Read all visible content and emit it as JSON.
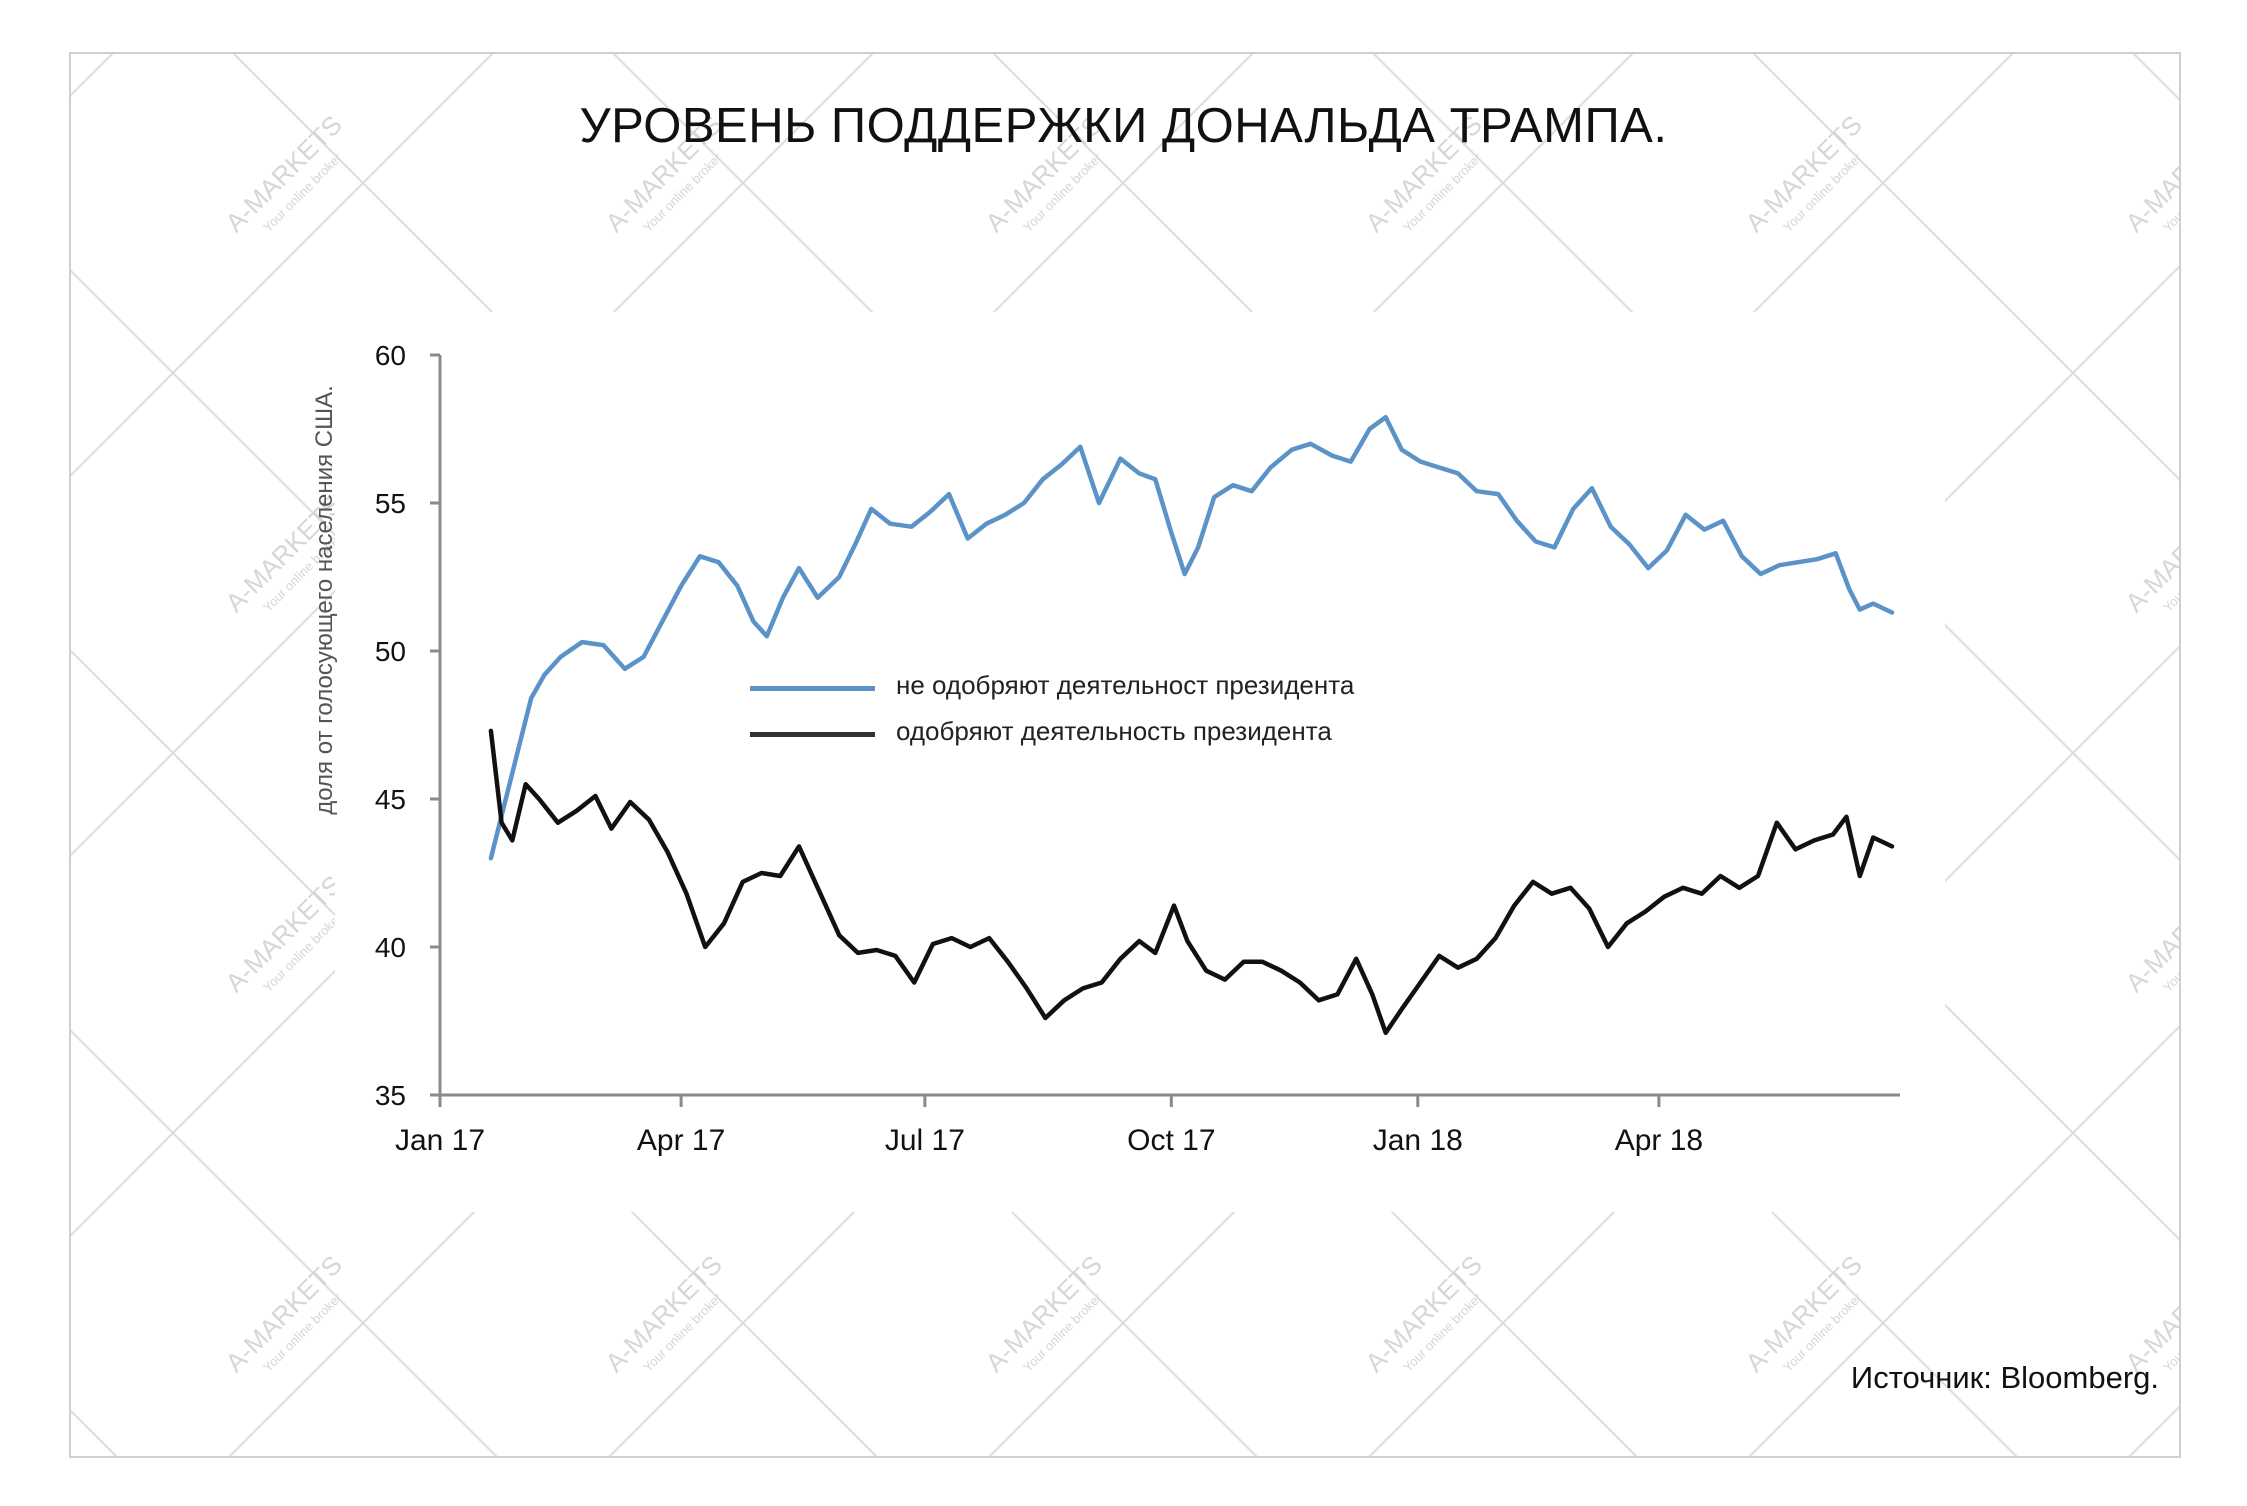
{
  "title": "УРОВЕНЬ ПОДДЕРЖКИ ДОНАЛЬДА ТРАМПА.",
  "source": "Источник: Bloomberg.",
  "watermark": {
    "brand": "A-MARKETS",
    "tagline": "Your online broker"
  },
  "chart_data": {
    "type": "line",
    "ylabel": "доля от голосующего населения США.",
    "xlabel": "",
    "ylim": [
      35,
      60
    ],
    "xlim": [
      "2017-01-01",
      "2018-06-30"
    ],
    "y_ticks": [
      35,
      40,
      45,
      50,
      55,
      60
    ],
    "x_ticks": [
      {
        "label": "Jan 17",
        "date": "2017-01-01"
      },
      {
        "label": "Apr 17",
        "date": "2017-04-01"
      },
      {
        "label": "Jul 17",
        "date": "2017-07-01"
      },
      {
        "label": "Oct 17",
        "date": "2017-10-01"
      },
      {
        "label": "Jan 18",
        "date": "2018-01-01"
      },
      {
        "label": "Apr 18",
        "date": "2018-04-01"
      }
    ],
    "grid": false,
    "legend_position": "center",
    "series": [
      {
        "name": "не одобряют деятельност президента",
        "color": "#5b93c9",
        "points": [
          [
            "2017-01-20",
            43.0
          ],
          [
            "2017-01-25",
            44.8
          ],
          [
            "2017-01-30",
            46.6
          ],
          [
            "2017-02-04",
            48.4
          ],
          [
            "2017-02-09",
            49.2
          ],
          [
            "2017-02-15",
            49.8
          ],
          [
            "2017-02-23",
            50.3
          ],
          [
            "2017-03-03",
            50.2
          ],
          [
            "2017-03-11",
            49.4
          ],
          [
            "2017-03-18",
            49.8
          ],
          [
            "2017-03-25",
            51.0
          ],
          [
            "2017-04-01",
            52.2
          ],
          [
            "2017-04-08",
            53.2
          ],
          [
            "2017-04-15",
            53.0
          ],
          [
            "2017-04-22",
            52.2
          ],
          [
            "2017-04-28",
            51.0
          ],
          [
            "2017-05-03",
            50.5
          ],
          [
            "2017-05-09",
            51.8
          ],
          [
            "2017-05-15",
            52.8
          ],
          [
            "2017-05-22",
            51.8
          ],
          [
            "2017-05-30",
            52.5
          ],
          [
            "2017-06-05",
            53.6
          ],
          [
            "2017-06-11",
            54.8
          ],
          [
            "2017-06-18",
            54.3
          ],
          [
            "2017-06-26",
            54.2
          ],
          [
            "2017-07-03",
            54.7
          ],
          [
            "2017-07-10",
            55.3
          ],
          [
            "2017-07-17",
            53.8
          ],
          [
            "2017-07-24",
            54.3
          ],
          [
            "2017-07-31",
            54.6
          ],
          [
            "2017-08-07",
            55.0
          ],
          [
            "2017-08-14",
            55.8
          ],
          [
            "2017-08-21",
            56.3
          ],
          [
            "2017-08-28",
            56.9
          ],
          [
            "2017-09-04",
            55.0
          ],
          [
            "2017-09-12",
            56.5
          ],
          [
            "2017-09-19",
            56.0
          ],
          [
            "2017-09-25",
            55.8
          ],
          [
            "2017-10-01",
            54.0
          ],
          [
            "2017-10-06",
            52.6
          ],
          [
            "2017-10-11",
            53.5
          ],
          [
            "2017-10-17",
            55.2
          ],
          [
            "2017-10-24",
            55.6
          ],
          [
            "2017-10-31",
            55.4
          ],
          [
            "2017-11-07",
            56.2
          ],
          [
            "2017-11-15",
            56.8
          ],
          [
            "2017-11-22",
            57.0
          ],
          [
            "2017-11-30",
            56.6
          ],
          [
            "2017-12-07",
            56.4
          ],
          [
            "2017-12-14",
            57.5
          ],
          [
            "2017-12-20",
            57.9
          ],
          [
            "2017-12-26",
            56.8
          ],
          [
            "2018-01-02",
            56.4
          ],
          [
            "2018-01-09",
            56.2
          ],
          [
            "2018-01-16",
            56.0
          ],
          [
            "2018-01-23",
            55.4
          ],
          [
            "2018-01-31",
            55.3
          ],
          [
            "2018-02-07",
            54.4
          ],
          [
            "2018-02-14",
            53.7
          ],
          [
            "2018-02-21",
            53.5
          ],
          [
            "2018-02-28",
            54.8
          ],
          [
            "2018-03-07",
            55.5
          ],
          [
            "2018-03-14",
            54.2
          ],
          [
            "2018-03-21",
            53.6
          ],
          [
            "2018-03-28",
            52.8
          ],
          [
            "2018-04-04",
            53.4
          ],
          [
            "2018-04-11",
            54.6
          ],
          [
            "2018-04-18",
            54.1
          ],
          [
            "2018-04-25",
            54.4
          ],
          [
            "2018-05-02",
            53.2
          ],
          [
            "2018-05-09",
            52.6
          ],
          [
            "2018-05-16",
            52.9
          ],
          [
            "2018-05-23",
            53.0
          ],
          [
            "2018-05-30",
            53.1
          ],
          [
            "2018-06-06",
            53.3
          ],
          [
            "2018-06-11",
            52.1
          ],
          [
            "2018-06-15",
            51.4
          ],
          [
            "2018-06-20",
            51.6
          ],
          [
            "2018-06-27",
            51.3
          ]
        ]
      },
      {
        "name": "одобряют деятельность президента",
        "color": "#111111",
        "points": [
          [
            "2017-01-20",
            47.3
          ],
          [
            "2017-01-24",
            44.2
          ],
          [
            "2017-01-28",
            43.6
          ],
          [
            "2017-02-02",
            45.5
          ],
          [
            "2017-02-07",
            45.0
          ],
          [
            "2017-02-14",
            44.2
          ],
          [
            "2017-02-21",
            44.6
          ],
          [
            "2017-02-28",
            45.1
          ],
          [
            "2017-03-06",
            44.0
          ],
          [
            "2017-03-13",
            44.9
          ],
          [
            "2017-03-20",
            44.3
          ],
          [
            "2017-03-27",
            43.2
          ],
          [
            "2017-04-03",
            41.8
          ],
          [
            "2017-04-10",
            40.0
          ],
          [
            "2017-04-17",
            40.8
          ],
          [
            "2017-04-24",
            42.2
          ],
          [
            "2017-05-01",
            42.5
          ],
          [
            "2017-05-08",
            42.4
          ],
          [
            "2017-05-15",
            43.4
          ],
          [
            "2017-05-22",
            42.0
          ],
          [
            "2017-05-30",
            40.4
          ],
          [
            "2017-06-06",
            39.8
          ],
          [
            "2017-06-13",
            39.9
          ],
          [
            "2017-06-20",
            39.7
          ],
          [
            "2017-06-27",
            38.8
          ],
          [
            "2017-07-04",
            40.1
          ],
          [
            "2017-07-11",
            40.3
          ],
          [
            "2017-07-18",
            40.0
          ],
          [
            "2017-07-25",
            40.3
          ],
          [
            "2017-08-01",
            39.5
          ],
          [
            "2017-08-08",
            38.6
          ],
          [
            "2017-08-15",
            37.6
          ],
          [
            "2017-08-22",
            38.2
          ],
          [
            "2017-08-29",
            38.6
          ],
          [
            "2017-09-05",
            38.8
          ],
          [
            "2017-09-12",
            39.6
          ],
          [
            "2017-09-19",
            40.2
          ],
          [
            "2017-09-25",
            39.8
          ],
          [
            "2017-10-02",
            41.4
          ],
          [
            "2017-10-07",
            40.2
          ],
          [
            "2017-10-14",
            39.2
          ],
          [
            "2017-10-21",
            38.9
          ],
          [
            "2017-10-28",
            39.5
          ],
          [
            "2017-11-04",
            39.5
          ],
          [
            "2017-11-11",
            39.2
          ],
          [
            "2017-11-18",
            38.8
          ],
          [
            "2017-11-25",
            38.2
          ],
          [
            "2017-12-02",
            38.4
          ],
          [
            "2017-12-09",
            39.6
          ],
          [
            "2017-12-15",
            38.4
          ],
          [
            "2017-12-20",
            37.1
          ],
          [
            "2017-12-26",
            37.9
          ],
          [
            "2018-01-02",
            38.8
          ],
          [
            "2018-01-09",
            39.7
          ],
          [
            "2018-01-16",
            39.3
          ],
          [
            "2018-01-23",
            39.6
          ],
          [
            "2018-01-30",
            40.3
          ],
          [
            "2018-02-06",
            41.4
          ],
          [
            "2018-02-13",
            42.2
          ],
          [
            "2018-02-20",
            41.8
          ],
          [
            "2018-02-27",
            42.0
          ],
          [
            "2018-03-06",
            41.3
          ],
          [
            "2018-03-13",
            40.0
          ],
          [
            "2018-03-20",
            40.8
          ],
          [
            "2018-03-27",
            41.2
          ],
          [
            "2018-04-03",
            41.7
          ],
          [
            "2018-04-10",
            42.0
          ],
          [
            "2018-04-17",
            41.8
          ],
          [
            "2018-04-24",
            42.4
          ],
          [
            "2018-05-01",
            42.0
          ],
          [
            "2018-05-08",
            42.4
          ],
          [
            "2018-05-15",
            44.2
          ],
          [
            "2018-05-22",
            43.3
          ],
          [
            "2018-05-29",
            43.6
          ],
          [
            "2018-06-05",
            43.8
          ],
          [
            "2018-06-10",
            44.4
          ],
          [
            "2018-06-15",
            42.4
          ],
          [
            "2018-06-20",
            43.7
          ],
          [
            "2018-06-27",
            43.4
          ]
        ]
      }
    ]
  }
}
